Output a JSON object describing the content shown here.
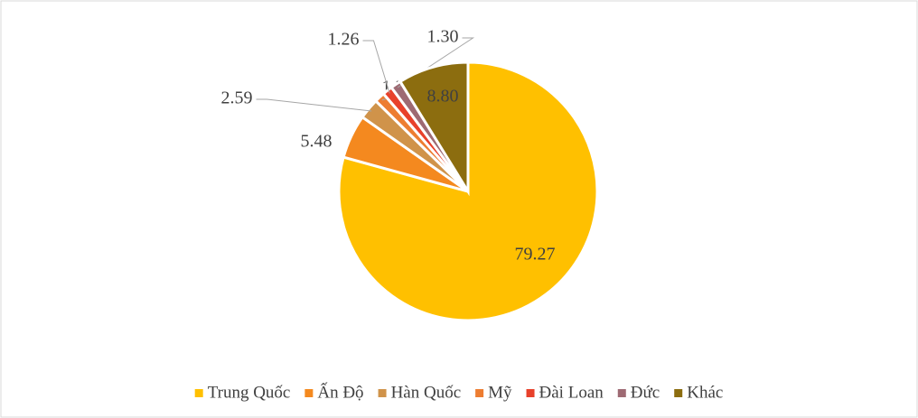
{
  "chart_data": {
    "type": "pie",
    "categories": [
      "Trung Quốc",
      "Ấn Độ",
      "Hàn Quốc",
      "Mỹ",
      "Đài Loan",
      "Đức",
      "Khác"
    ],
    "values": [
      79.27,
      5.48,
      2.59,
      1.29,
      1.26,
      1.3,
      8.8
    ],
    "value_labels": [
      "79.27",
      "5.48",
      "2.59",
      "1.29",
      "1.26",
      "1.30",
      "8.80"
    ],
    "colors": [
      "#FFC000",
      "#F4891F",
      "#D0934A",
      "#ED7D31",
      "#E8412B",
      "#9E6A73",
      "#8C6D0F"
    ],
    "legend": "bottom"
  }
}
